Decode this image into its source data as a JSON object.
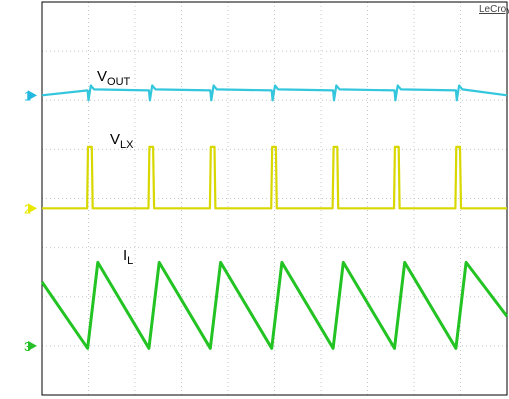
{
  "brand": "LeCroy",
  "labels": {
    "vout": {
      "main": "V",
      "sub": "OUT"
    },
    "vlx": {
      "main": "V",
      "sub": "LX"
    },
    "il": {
      "main": "I",
      "sub": "L"
    }
  },
  "channel_markers": [
    {
      "number": "1",
      "color": "#22b8e0"
    },
    {
      "number": "2",
      "color": "#e8e800"
    },
    {
      "number": "3",
      "color": "#28c028"
    }
  ],
  "colors": {
    "background": "#ffffff",
    "grid": "#c8c8c8",
    "vout": "#33c6dc",
    "vlx": "#d8d800",
    "il": "#22c322"
  },
  "chart_data": {
    "type": "line",
    "grid": true,
    "grid_divisions": {
      "x": 10,
      "y": 8
    },
    "x_unit": "div",
    "y_unit": "div",
    "xlim": [
      0,
      10
    ],
    "ylim": [
      0,
      8
    ],
    "series": [
      {
        "name": "V OUT",
        "x": [
          0,
          0.98,
          1.0,
          1.05,
          1.12,
          2.3,
          2.32,
          2.37,
          2.44,
          3.62,
          3.64,
          3.69,
          3.76,
          4.94,
          4.96,
          5.01,
          5.08,
          6.26,
          6.28,
          6.33,
          6.4,
          7.58,
          7.6,
          7.65,
          7.72,
          8.9,
          8.92,
          8.97,
          9.04,
          10
        ],
        "y": [
          6.1,
          6.2,
          6.0,
          6.3,
          6.22,
          6.2,
          6.0,
          6.3,
          6.22,
          6.2,
          6.0,
          6.3,
          6.22,
          6.2,
          6.0,
          6.3,
          6.22,
          6.2,
          6.0,
          6.3,
          6.22,
          6.2,
          6.0,
          6.3,
          6.22,
          6.2,
          6.0,
          6.3,
          6.22,
          6.1
        ]
      },
      {
        "name": "V LX",
        "x": [
          0,
          0.97,
          0.99,
          1.07,
          1.09,
          2.29,
          2.31,
          2.39,
          2.41,
          3.61,
          3.63,
          3.71,
          3.73,
          4.93,
          4.95,
          5.03,
          5.05,
          6.25,
          6.27,
          6.35,
          6.37,
          7.57,
          7.59,
          7.67,
          7.69,
          8.89,
          8.91,
          8.99,
          9.01,
          10
        ],
        "y": [
          3.8,
          3.8,
          5.05,
          5.05,
          3.8,
          3.8,
          5.05,
          5.05,
          3.8,
          3.8,
          5.05,
          5.05,
          3.8,
          3.8,
          5.05,
          5.05,
          3.8,
          3.8,
          5.05,
          5.05,
          3.8,
          3.8,
          5.05,
          5.05,
          3.8,
          3.8,
          5.05,
          5.05,
          3.8,
          3.8
        ]
      },
      {
        "name": "I L",
        "x": [
          0,
          0.98,
          1.2,
          2.3,
          2.52,
          3.62,
          3.84,
          4.94,
          5.16,
          6.26,
          6.48,
          7.58,
          7.8,
          8.9,
          9.12,
          10
        ],
        "y": [
          2.3,
          0.95,
          2.7,
          0.95,
          2.7,
          0.95,
          2.7,
          0.95,
          2.7,
          0.95,
          2.7,
          0.95,
          2.7,
          0.95,
          2.7,
          1.6
        ]
      }
    ]
  }
}
